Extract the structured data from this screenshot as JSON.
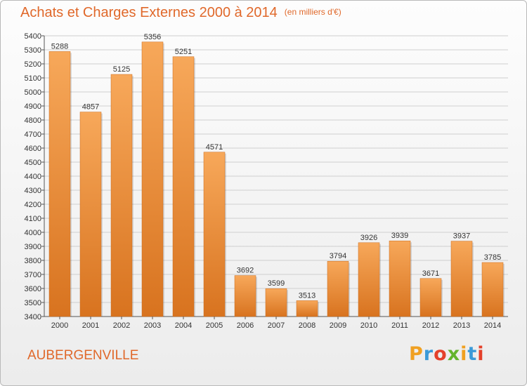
{
  "title": "Achats et Charges Externes 2000 à 2014",
  "unit": "(en milliers d'€)",
  "commune": "AUBERGENVILLE",
  "brand": {
    "letters": [
      "P",
      "r",
      "o",
      "x",
      "i",
      "t",
      "i"
    ],
    "colors": [
      "#f0a021",
      "#3b9ad8",
      "#e4412b",
      "#64b42d",
      "#f0a021",
      "#3b9ad8",
      "#e4412b"
    ]
  },
  "colors": {
    "accent": "#e0682a",
    "bar_light": "#f7a85a",
    "bar_dark": "#d8731f",
    "grid": "#cfcfcf"
  },
  "chart_data": {
    "type": "bar",
    "categories": [
      "2000",
      "2001",
      "2002",
      "2003",
      "2004",
      "2005",
      "2006",
      "2007",
      "2008",
      "2009",
      "2010",
      "2011",
      "2012",
      "2013",
      "2014"
    ],
    "values": [
      5288,
      4857,
      5125,
      5356,
      5251,
      4571,
      3692,
      3599,
      3513,
      3794,
      3926,
      3939,
      3671,
      3937,
      3785
    ],
    "ylim": [
      3400,
      5400
    ],
    "yticks": [
      3400,
      3500,
      3600,
      3700,
      3800,
      3900,
      4000,
      4100,
      4200,
      4300,
      4400,
      4500,
      4600,
      4700,
      4800,
      4900,
      5000,
      5100,
      5200,
      5300,
      5400
    ],
    "grid": true
  }
}
